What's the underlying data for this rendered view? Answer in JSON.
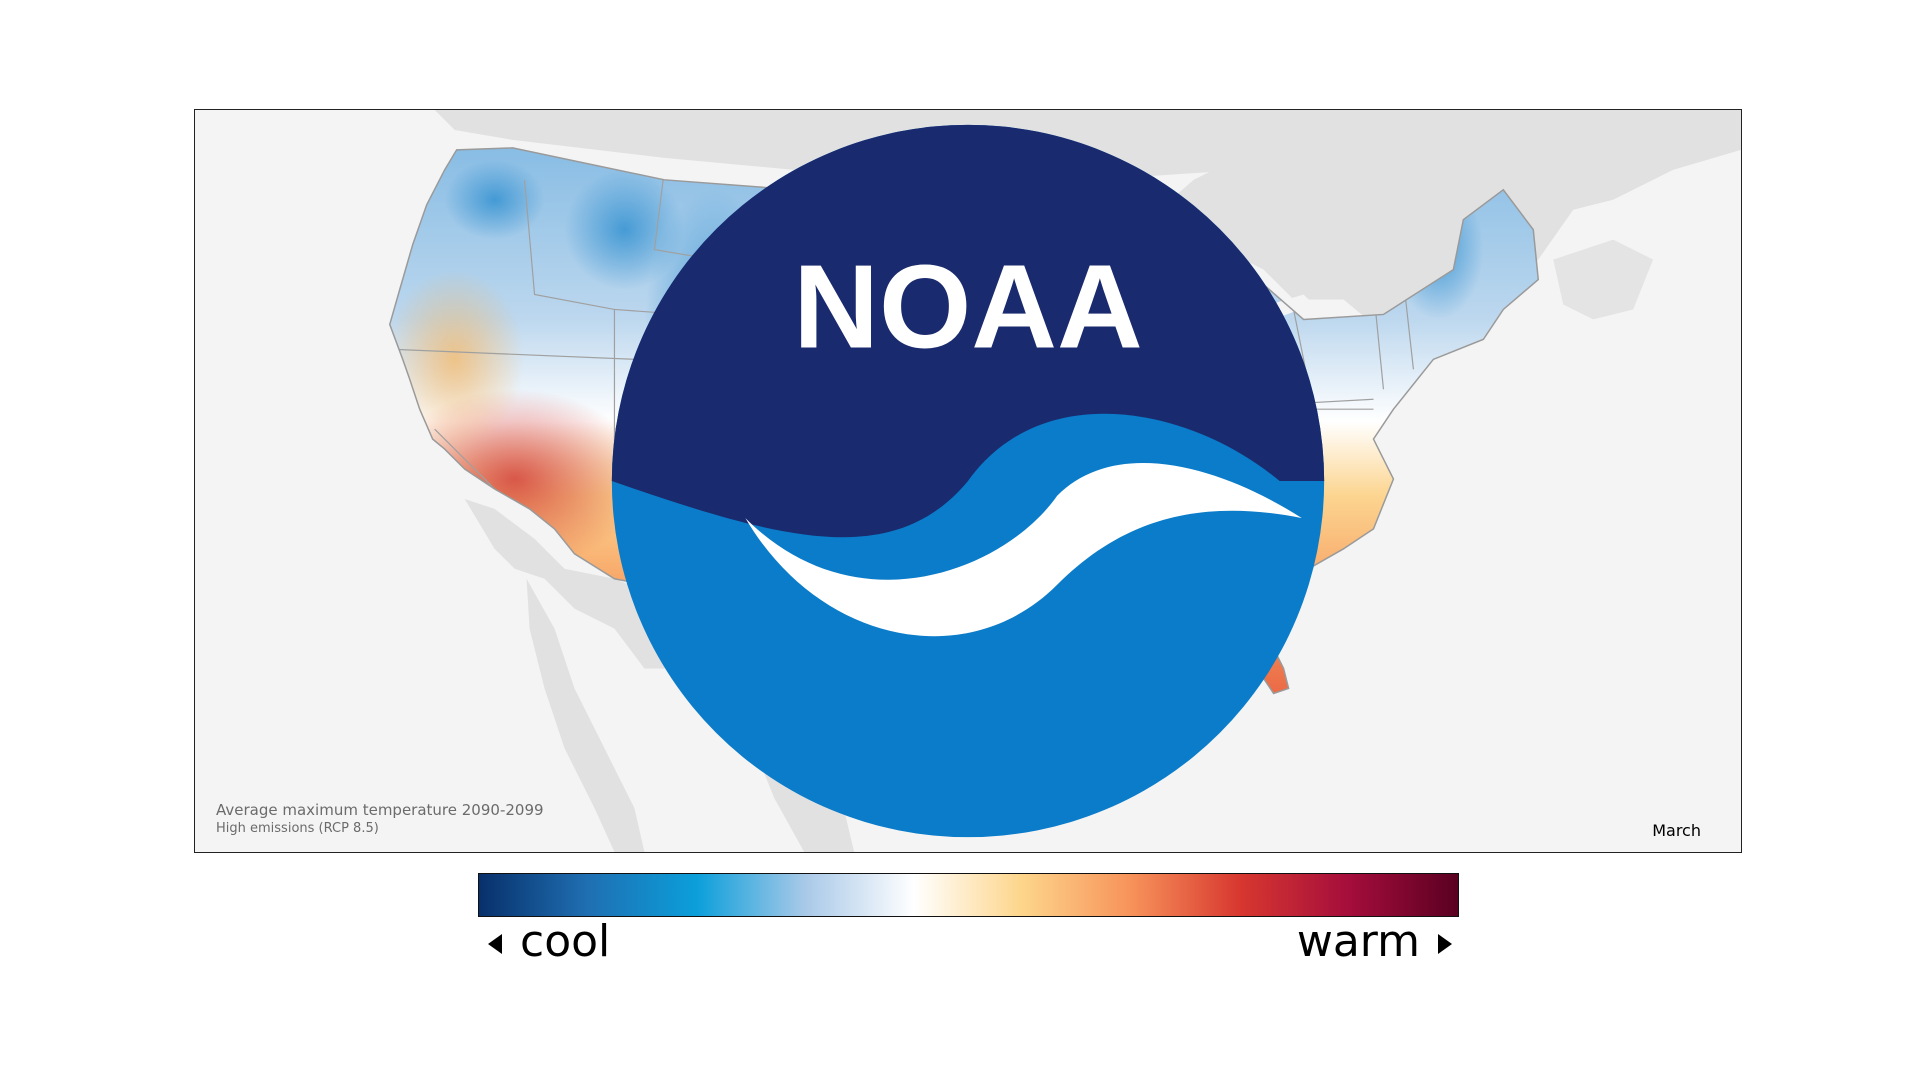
{
  "map": {
    "caption_line1": "Average maximum temperature 2090-2099",
    "caption_line2": "High emissions (RCP 8.5)",
    "month": "March",
    "logo_text": "NOAA"
  },
  "legend": {
    "cool_label": "cool",
    "warm_label": "warm",
    "gradient_colors": [
      "#08306b",
      "#1f6fb2",
      "#0b9fda",
      "#a9c9e8",
      "#ffffff",
      "#fdd58a",
      "#f7925a",
      "#d7372f",
      "#a50d3c",
      "#5a0021"
    ]
  },
  "colors": {
    "land_outside": "#e1e1e1",
    "ocean": "#f4f4f4",
    "state_border": "#a0a0a0"
  }
}
